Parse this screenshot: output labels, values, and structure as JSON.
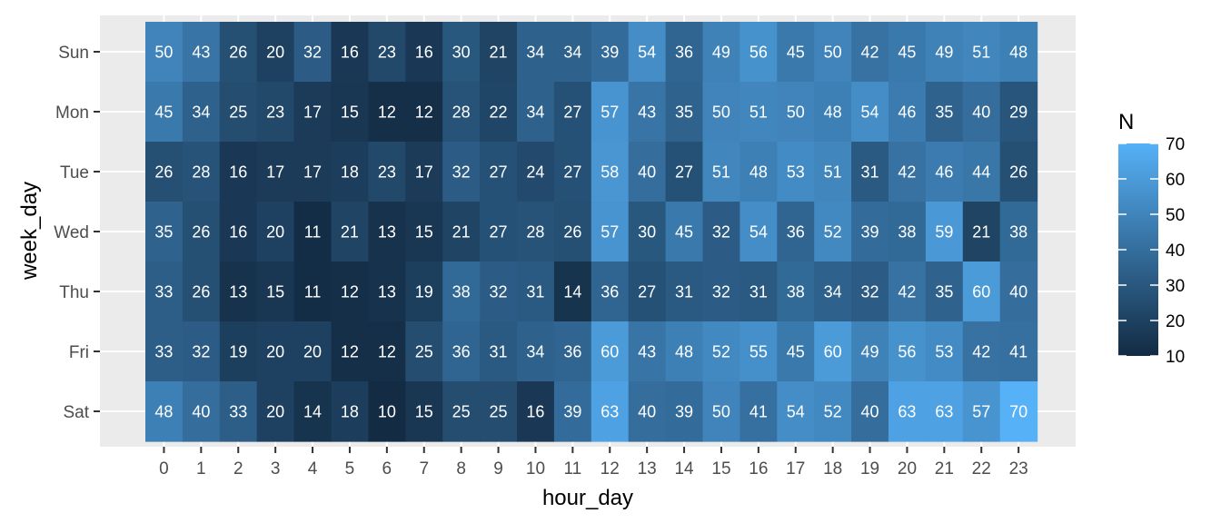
{
  "chart_data": {
    "type": "heatmap",
    "title": "",
    "xlabel": "hour_day",
    "ylabel": "week_day",
    "x_categories": [
      "0",
      "1",
      "2",
      "3",
      "4",
      "5",
      "6",
      "7",
      "8",
      "9",
      "10",
      "11",
      "12",
      "13",
      "14",
      "15",
      "16",
      "17",
      "18",
      "19",
      "20",
      "21",
      "22",
      "23"
    ],
    "y_categories": [
      "Sun",
      "Mon",
      "Tue",
      "Wed",
      "Thu",
      "Fri",
      "Sat"
    ],
    "values": [
      [
        50,
        43,
        26,
        20,
        32,
        16,
        23,
        16,
        30,
        21,
        34,
        34,
        39,
        54,
        36,
        49,
        56,
        45,
        50,
        42,
        45,
        49,
        51,
        48
      ],
      [
        45,
        34,
        25,
        23,
        17,
        15,
        12,
        12,
        28,
        22,
        34,
        27,
        57,
        43,
        35,
        50,
        51,
        50,
        48,
        54,
        46,
        35,
        40,
        29
      ],
      [
        26,
        28,
        16,
        17,
        17,
        18,
        23,
        17,
        32,
        27,
        24,
        27,
        58,
        40,
        27,
        51,
        48,
        53,
        51,
        31,
        42,
        46,
        44,
        26
      ],
      [
        35,
        26,
        16,
        20,
        11,
        21,
        13,
        15,
        21,
        27,
        28,
        26,
        57,
        30,
        45,
        32,
        54,
        36,
        52,
        39,
        38,
        59,
        21,
        38
      ],
      [
        33,
        26,
        13,
        15,
        11,
        12,
        13,
        19,
        38,
        32,
        31,
        14,
        36,
        27,
        31,
        32,
        31,
        38,
        34,
        32,
        42,
        35,
        60,
        40
      ],
      [
        33,
        32,
        19,
        20,
        20,
        12,
        12,
        25,
        36,
        31,
        34,
        36,
        60,
        43,
        48,
        52,
        55,
        45,
        60,
        49,
        56,
        53,
        42,
        41
      ],
      [
        48,
        40,
        33,
        20,
        14,
        18,
        10,
        15,
        25,
        25,
        16,
        39,
        63,
        40,
        39,
        50,
        41,
        54,
        52,
        40,
        63,
        63,
        57,
        70
      ]
    ],
    "legend": {
      "title": "N",
      "ticks": [
        "10",
        "20",
        "30",
        "40",
        "50",
        "60",
        "70"
      ],
      "range": [
        10,
        70
      ],
      "position": "right"
    },
    "color_low": "#132B43",
    "color_high": "#56B1F7",
    "panel_background": "#EBEBEB",
    "grid": true
  }
}
